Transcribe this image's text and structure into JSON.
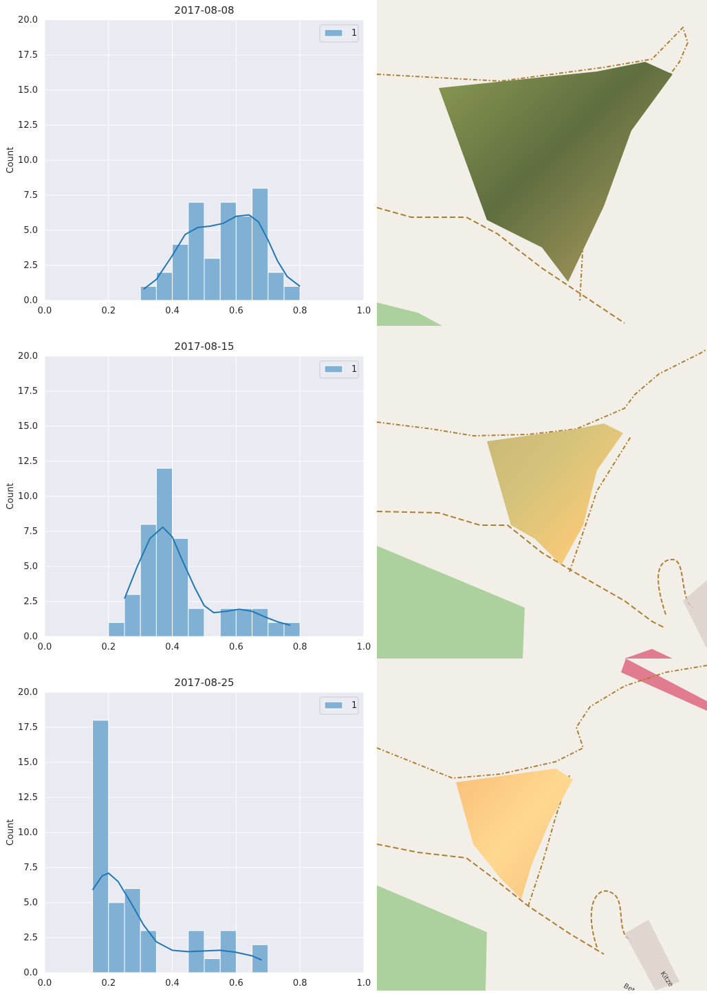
{
  "chart_data": [
    {
      "type": "bar",
      "title": "2017-08-08",
      "xlabel": "",
      "ylabel": "Count",
      "xlim": [
        0.0,
        1.0
      ],
      "ylim": [
        0,
        20
      ],
      "xticks": [
        "0.0",
        "0.2",
        "0.4",
        "0.6",
        "0.8",
        "1.0"
      ],
      "yticks": [
        "0.0",
        "2.5",
        "5.0",
        "7.5",
        "10.0",
        "12.5",
        "15.0",
        "17.5",
        "20.0"
      ],
      "grid": true,
      "legend": {
        "position": "top-right",
        "entries": [
          "1"
        ]
      },
      "bin_width": 0.05,
      "bins": [
        {
          "x": 0.3,
          "count": 1
        },
        {
          "x": 0.35,
          "count": 2
        },
        {
          "x": 0.4,
          "count": 4
        },
        {
          "x": 0.45,
          "count": 7
        },
        {
          "x": 0.5,
          "count": 3
        },
        {
          "x": 0.55,
          "count": 7
        },
        {
          "x": 0.6,
          "count": 6
        },
        {
          "x": 0.65,
          "count": 8
        },
        {
          "x": 0.7,
          "count": 2
        },
        {
          "x": 0.75,
          "count": 1
        }
      ],
      "kde": [
        [
          0.31,
          0.8
        ],
        [
          0.35,
          1.5
        ],
        [
          0.4,
          3.2
        ],
        [
          0.44,
          4.7
        ],
        [
          0.48,
          5.2
        ],
        [
          0.52,
          5.3
        ],
        [
          0.56,
          5.5
        ],
        [
          0.6,
          6.0
        ],
        [
          0.64,
          6.1
        ],
        [
          0.67,
          5.6
        ],
        [
          0.7,
          4.3
        ],
        [
          0.73,
          2.8
        ],
        [
          0.76,
          1.7
        ],
        [
          0.8,
          1.0
        ]
      ]
    },
    {
      "type": "bar",
      "title": "2017-08-15",
      "xlabel": "",
      "ylabel": "Count",
      "xlim": [
        0.0,
        1.0
      ],
      "ylim": [
        0,
        20
      ],
      "xticks": [
        "0.0",
        "0.2",
        "0.4",
        "0.6",
        "0.8",
        "1.0"
      ],
      "yticks": [
        "0.0",
        "2.5",
        "5.0",
        "7.5",
        "10.0",
        "12.5",
        "15.0",
        "17.5",
        "20.0"
      ],
      "grid": true,
      "legend": {
        "position": "top-right",
        "entries": [
          "1"
        ]
      },
      "bin_width": 0.05,
      "bins": [
        {
          "x": 0.2,
          "count": 1
        },
        {
          "x": 0.25,
          "count": 3
        },
        {
          "x": 0.3,
          "count": 8
        },
        {
          "x": 0.35,
          "count": 12
        },
        {
          "x": 0.4,
          "count": 7
        },
        {
          "x": 0.45,
          "count": 2
        },
        {
          "x": 0.55,
          "count": 2
        },
        {
          "x": 0.6,
          "count": 2
        },
        {
          "x": 0.65,
          "count": 2
        },
        {
          "x": 0.7,
          "count": 1
        },
        {
          "x": 0.75,
          "count": 1
        }
      ],
      "kde": [
        [
          0.25,
          2.7
        ],
        [
          0.29,
          5.0
        ],
        [
          0.33,
          7.0
        ],
        [
          0.37,
          7.8
        ],
        [
          0.4,
          7.1
        ],
        [
          0.43,
          5.5
        ],
        [
          0.47,
          3.5
        ],
        [
          0.5,
          2.2
        ],
        [
          0.53,
          1.7
        ],
        [
          0.57,
          1.8
        ],
        [
          0.61,
          1.95
        ],
        [
          0.65,
          1.8
        ],
        [
          0.69,
          1.4
        ],
        [
          0.73,
          1.05
        ],
        [
          0.77,
          0.8
        ]
      ]
    },
    {
      "type": "bar",
      "title": "2017-08-25",
      "xlabel": "",
      "ylabel": "Count",
      "xlim": [
        0.0,
        1.0
      ],
      "ylim": [
        0,
        20
      ],
      "xticks": [
        "0.0",
        "0.2",
        "0.4",
        "0.6",
        "0.8",
        "1.0"
      ],
      "yticks": [
        "0.0",
        "2.5",
        "5.0",
        "7.5",
        "10.0",
        "12.5",
        "15.0",
        "17.5",
        "20.0"
      ],
      "grid": true,
      "legend": {
        "position": "top-right",
        "entries": [
          "1"
        ]
      },
      "bin_width": 0.05,
      "bins": [
        {
          "x": 0.15,
          "count": 18
        },
        {
          "x": 0.2,
          "count": 5
        },
        {
          "x": 0.25,
          "count": 6
        },
        {
          "x": 0.3,
          "count": 3
        },
        {
          "x": 0.45,
          "count": 3
        },
        {
          "x": 0.5,
          "count": 1
        },
        {
          "x": 0.55,
          "count": 3
        },
        {
          "x": 0.65,
          "count": 2
        }
      ],
      "kde": [
        [
          0.15,
          5.9
        ],
        [
          0.18,
          6.9
        ],
        [
          0.2,
          7.1
        ],
        [
          0.23,
          6.5
        ],
        [
          0.27,
          5.0
        ],
        [
          0.31,
          3.4
        ],
        [
          0.35,
          2.2
        ],
        [
          0.4,
          1.6
        ],
        [
          0.45,
          1.5
        ],
        [
          0.5,
          1.55
        ],
        [
          0.55,
          1.6
        ],
        [
          0.6,
          1.45
        ],
        [
          0.65,
          1.2
        ],
        [
          0.68,
          0.9
        ]
      ]
    }
  ],
  "colors": {
    "axes_bg": "#eaeaf2",
    "grid": "#ffffff",
    "bar_fill": "#80b0d4",
    "bar_edge": "#ffffff",
    "kde_line": "#1f77b4",
    "text": "#262626",
    "map_bg": "#f2efe9",
    "track": "#b07d2c",
    "forest": "#add19e",
    "road": "#e07b90",
    "building": "#d9d0c9"
  },
  "maps": [
    {
      "description_icon": "map-tile-2017-08-08",
      "field_tone": "green"
    },
    {
      "description_icon": "map-tile-2017-08-15",
      "field_tone": "yellow-green"
    },
    {
      "description_icon": "map-tile-2017-08-25",
      "field_tone": "orange"
    }
  ],
  "map_labels": [
    "Kitze",
    "Bet"
  ]
}
